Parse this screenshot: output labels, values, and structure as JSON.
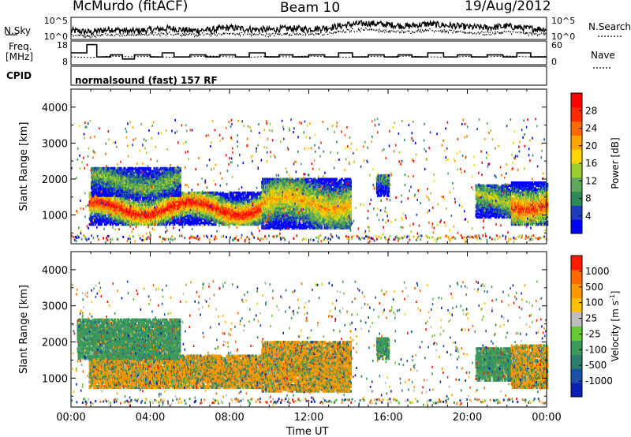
{
  "header": {
    "station": "McMurdo (fitACF)",
    "beam": "Beam 10",
    "date": "19/Aug/2012"
  },
  "side_labels": {
    "nsky": "N.Sky",
    "freq_line1": "Freq.",
    "freq_line2": "[MHz]",
    "cpid": "CPID",
    "nsearch": "N.Search",
    "nave": "Nave"
  },
  "cpid_value": "normalsound (fast) 157 RF",
  "chart_data": [
    {
      "type": "line",
      "panel": "noise",
      "left_ticks": [
        "10^5",
        "10^0"
      ],
      "right_ticks": [
        "10^5",
        "10^0"
      ],
      "series": [
        {
          "name": "N.Sky",
          "x": [
            0,
            1,
            2,
            3,
            4,
            5,
            6,
            7,
            8,
            9,
            10,
            11,
            12,
            13,
            14,
            15,
            16,
            17,
            18,
            19,
            20,
            21,
            22,
            23,
            24
          ],
          "y": [
            3.2,
            3.0,
            3.4,
            3.1,
            3.3,
            3.5,
            3.2,
            3.3,
            3.6,
            3.4,
            3.3,
            3.5,
            3.4,
            3.6,
            4.0,
            4.2,
            4.0,
            3.8,
            4.1,
            3.9,
            3.7,
            3.6,
            3.8,
            3.5,
            3.4
          ]
        },
        {
          "name": "N.Search",
          "x": [
            0,
            1,
            2,
            3,
            4,
            5,
            6,
            7,
            8,
            9,
            10,
            11,
            12,
            13,
            14,
            15,
            16,
            17,
            18,
            19,
            20,
            21,
            22,
            23,
            24
          ],
          "y": [
            2.6,
            2.5,
            2.7,
            2.6,
            2.7,
            2.8,
            2.6,
            2.7,
            2.8,
            2.7,
            2.6,
            2.8,
            2.7,
            2.8,
            3.2,
            3.4,
            3.1,
            3.0,
            3.3,
            3.1,
            2.9,
            2.8,
            3.0,
            2.8,
            2.7
          ]
        }
      ]
    },
    {
      "type": "line",
      "panel": "frequency",
      "left_ticks": [
        "18",
        "8"
      ],
      "right_ticks": [
        "60",
        "0"
      ],
      "series": [
        {
          "name": "Freq.",
          "x": [
            0,
            0.8,
            1.3,
            2.0,
            2.6,
            3.2,
            4.0,
            4.6,
            5.2,
            6.0,
            6.8,
            7.5,
            8.3,
            9.0,
            9.8,
            10.5,
            11.2,
            12.0,
            12.8,
            13.5,
            14.2,
            15.0,
            15.8,
            16.5,
            17.2,
            18.0,
            18.8,
            19.5,
            20.2,
            21.0,
            21.8,
            22.5,
            23.2,
            24
          ],
          "y": [
            13,
            17,
            11,
            12,
            10,
            12,
            11,
            13,
            11,
            12,
            11,
            12,
            11,
            13,
            11,
            12,
            11,
            12,
            11,
            13,
            11,
            12,
            11,
            12,
            11,
            13,
            11,
            12,
            11,
            12,
            11,
            13,
            11,
            12
          ]
        },
        {
          "name": "Nave",
          "x": [
            0,
            1,
            2,
            3,
            4,
            5,
            6,
            7,
            8,
            9,
            10,
            11,
            12,
            13,
            14,
            15,
            16,
            17,
            18,
            19,
            20,
            21,
            22,
            23,
            24
          ],
          "y": [
            20,
            18,
            22,
            20,
            21,
            19,
            20,
            22,
            20,
            19,
            21,
            20,
            22,
            20,
            19,
            21,
            20,
            22,
            20,
            19,
            21,
            20,
            22,
            20,
            21
          ]
        }
      ]
    },
    {
      "type": "heatmap",
      "panel": "power",
      "ylabel": "Slant Range [km]",
      "yticks": [
        "4000",
        "3000",
        "2000",
        "1000"
      ],
      "colorbar_label": "Power [dB]",
      "colorbar_ticks": [
        "28",
        "24",
        "20",
        "16",
        "12",
        "8",
        "4"
      ],
      "colorbar_colors": [
        "#0000ff",
        "#1e3cbe",
        "#2e8b57",
        "#5ea85e",
        "#9acd32",
        "#ffd700",
        "#ffa500",
        "#ff6a00",
        "#ff2a00",
        "#ff0000"
      ],
      "bands": [
        {
          "t0": 0.9,
          "t1": 9.6,
          "r0": 700,
          "r1": 1600,
          "intensity": 0.9
        },
        {
          "t0": 1.0,
          "t1": 5.5,
          "r0": 1500,
          "r1": 2300,
          "intensity": 0.35
        },
        {
          "t0": 9.6,
          "t1": 14.1,
          "r0": 600,
          "r1": 2000,
          "intensity": 0.6
        },
        {
          "t0": 15.4,
          "t1": 16.0,
          "r0": 1500,
          "r1": 2100,
          "intensity": 0.25
        },
        {
          "t0": 20.4,
          "t1": 22.2,
          "r0": 900,
          "r1": 1800,
          "intensity": 0.45
        },
        {
          "t0": 22.2,
          "t1": 24.0,
          "r0": 700,
          "r1": 1900,
          "intensity": 0.8
        }
      ]
    },
    {
      "type": "heatmap",
      "panel": "velocity",
      "ylabel": "Slant Range [km]",
      "yticks": [
        "4000",
        "3000",
        "2000",
        "1000"
      ],
      "colorbar_label": "Velocity [m s",
      "colorbar_label_sup": "-1",
      "colorbar_label_end": "]",
      "colorbar_ticks": [
        "1000",
        "500",
        "100",
        "25",
        "-25",
        "-100",
        "-500",
        "-1000"
      ],
      "colorbar_colors": [
        "#0a1fb4",
        "#1e50aa",
        "#2e7d6a",
        "#3c9a5a",
        "#66cc33",
        "#bdbdbd",
        "#ffc107",
        "#ff9800",
        "#ff6a00",
        "#ff1a00"
      ],
      "bands": [
        {
          "t0": 0.9,
          "t1": 9.6,
          "r0": 700,
          "r1": 1600,
          "intensity": 0.7
        },
        {
          "t0": 0.3,
          "t1": 5.5,
          "r0": 1500,
          "r1": 2600,
          "intensity": 0.45
        },
        {
          "t0": 9.6,
          "t1": 14.1,
          "r0": 600,
          "r1": 2000,
          "intensity": 0.6
        },
        {
          "t0": 15.4,
          "t1": 16.0,
          "r0": 1500,
          "r1": 2100,
          "intensity": 0.3
        },
        {
          "t0": 20.4,
          "t1": 22.2,
          "r0": 900,
          "r1": 1800,
          "intensity": 0.5
        },
        {
          "t0": 22.2,
          "t1": 24.0,
          "r0": 700,
          "r1": 1900,
          "intensity": 0.65
        }
      ]
    }
  ],
  "xaxis": {
    "label": "Time UT",
    "ticks": [
      "00:00",
      "04:00",
      "08:00",
      "12:00",
      "16:00",
      "20:00",
      "00:00"
    ],
    "range": [
      0,
      24
    ]
  },
  "yrange": [
    200,
    4500
  ]
}
